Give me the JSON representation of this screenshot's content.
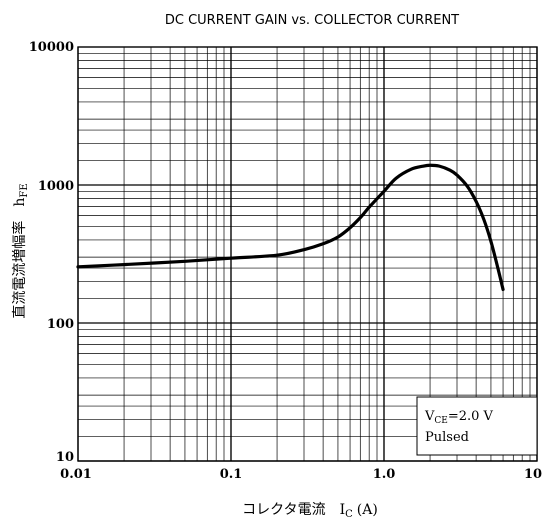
{
  "chart_data": {
    "type": "line",
    "title": "DC CURRENT GAIN vs. COLLECTOR CURRENT",
    "xlabel": {
      "main": "コレクタ電流　I",
      "sub": "C",
      "unit": "(A)"
    },
    "ylabel": {
      "main": "直流電流増幅率　h",
      "sub": "FE"
    },
    "xscale": "log",
    "yscale": "log",
    "xlim": [
      0.01,
      10
    ],
    "ylim": [
      10,
      10000
    ],
    "grid": true,
    "x_tick_labels": [
      "0.01",
      "0.1",
      "1.0",
      "10"
    ],
    "y_tick_labels": [
      "10",
      "100",
      "1000",
      "10000"
    ],
    "annotation": {
      "line1_main": "V",
      "line1_sub": "CE",
      "line1_rest": "=2.0 V",
      "line2": "Pulsed",
      "placement": "bottom-right"
    },
    "series": [
      {
        "x": [
          0.01,
          0.02,
          0.05,
          0.1,
          0.2,
          0.3,
          0.4,
          0.5,
          0.6,
          0.7,
          0.8,
          1.0,
          1.2,
          1.5,
          1.8,
          2.0,
          2.3,
          2.7,
          3.0,
          3.5,
          4.0,
          4.5,
          5.0,
          5.5,
          6.0
        ],
        "y": [
          255,
          265,
          280,
          295,
          310,
          340,
          375,
          420,
          490,
          580,
          690,
          900,
          1120,
          1300,
          1370,
          1390,
          1370,
          1280,
          1180,
          980,
          760,
          560,
          390,
          260,
          175
        ]
      }
    ],
    "colors": {
      "line": "#000000",
      "grid": "#000000",
      "background": "#ffffff"
    }
  }
}
